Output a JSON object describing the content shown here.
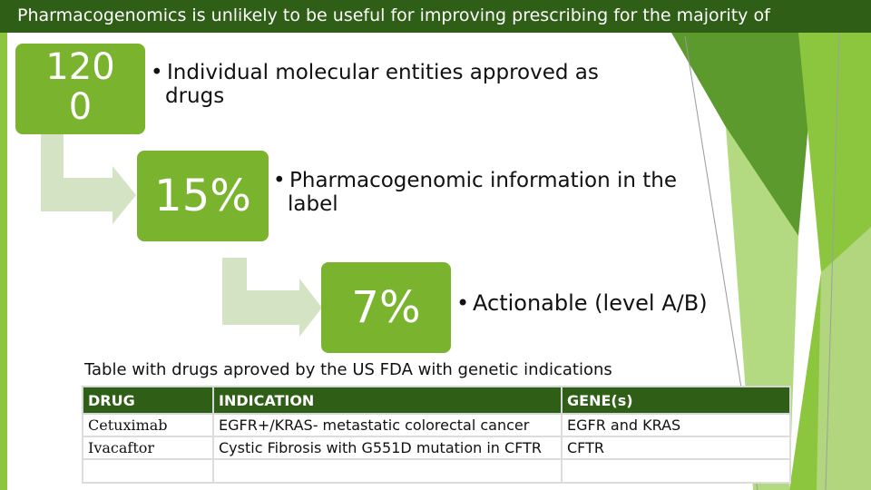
{
  "title": "Pharmacogenomics is unlikely to be useful for improving prescribing for the majority of",
  "colors": {
    "title_bar": "#2f5e16",
    "box": "#7ab32e",
    "arrow": "#d3e3c3",
    "table_header": "#2f5e16",
    "accent_light": "#a6d36b"
  },
  "steps": [
    {
      "value": "120 0",
      "value_line1": "120",
      "value_line2": "0",
      "bullet": "•",
      "text_line1": "Individual molecular entities approved as",
      "text_line2": "drugs"
    },
    {
      "value": "15%",
      "bullet": "•",
      "text_line1": "Pharmacogenomic information in the",
      "text_line2": "label"
    },
    {
      "value": "7%",
      "bullet": "•",
      "text_line1": "Actionable (level A/B)"
    }
  ],
  "table": {
    "caption": "Table with drugs aproved by the US FDA with genetic indications",
    "headers": [
      "DRUG",
      "INDICATION",
      "GENE(s)"
    ],
    "rows": [
      [
        "Cetuximab",
        "EGFR+/KRAS- metastatic colorectal cancer",
        "EGFR and KRAS"
      ],
      [
        "Ivacaftor",
        "Cystic Fibrosis with G551D mutation in CFTR",
        "CFTR"
      ]
    ]
  }
}
